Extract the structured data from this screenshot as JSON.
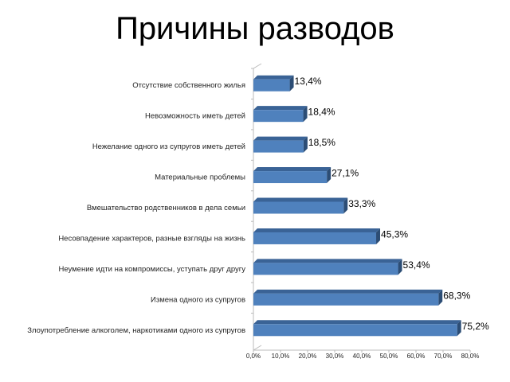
{
  "chart_data": {
    "type": "bar",
    "orientation": "horizontal",
    "style": "3d",
    "title": "Причины разводов",
    "categories": [
      "Отсутствие собственного жилья",
      "Невозможность иметь детей",
      "Нежелание одного из супругов иметь детей",
      "Материальные проблемы",
      "Вмешательство родственников в дела семьи",
      "Несовпадение характеров, разные взгляды на жизнь",
      "Неумение идти на компромиссы, уступать друг другу",
      "Измена одного из супругов",
      "Злоупотребление алкоголем, наркотиками одного из супругов"
    ],
    "values": [
      13.4,
      18.4,
      18.5,
      27.1,
      33.3,
      45.3,
      53.4,
      68.3,
      75.2
    ],
    "data_labels": [
      "13,4%",
      "18,4%",
      "18,5%",
      "27,1%",
      "33,3%",
      "45,3%",
      "53,4%",
      "68,3%",
      "75,2%"
    ],
    "x_ticks": [
      "0,0%",
      "10,0%",
      "20,0%",
      "30,0%",
      "40,0%",
      "50,0%",
      "60,0%",
      "70,0%",
      "80,0%"
    ],
    "xlim": [
      0,
      80
    ],
    "xlabel": "",
    "ylabel": "",
    "grid": false,
    "legend": "none",
    "bar_color": "#4F81BD",
    "bar_top_color": "#3A6396",
    "bar_side_color": "#2C4D75"
  }
}
